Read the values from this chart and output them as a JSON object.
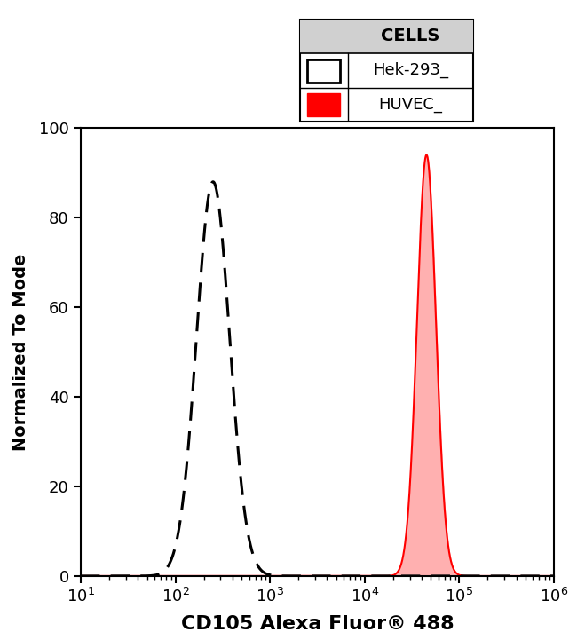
{
  "xlabel": "CD105 Alexa Fluor® 488",
  "ylabel": "Normalized To Mode",
  "ylim": [
    0,
    100
  ],
  "hek293_peak": 250,
  "hek293_sigma_log": 0.175,
  "hek293_height": 88,
  "huvec_peak": 45000,
  "huvec_sigma_log": 0.1,
  "huvec_height": 94,
  "hek293_color": "#000000",
  "huvec_color": "#ff0000",
  "huvec_fill_color": "#ffb0b0",
  "background_color": "#ffffff",
  "legend_title": "CELLS",
  "legend_label1": "Hek-293_",
  "legend_label2": "HUVEC_",
  "yticks": [
    0,
    20,
    40,
    60,
    80,
    100
  ],
  "xticks": [
    10,
    100,
    1000,
    10000,
    100000,
    1000000
  ],
  "xlabel_fontsize": 16,
  "ylabel_fontsize": 14
}
